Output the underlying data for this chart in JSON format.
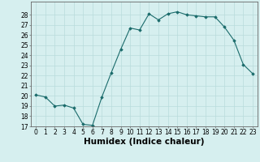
{
  "x": [
    0,
    1,
    2,
    3,
    4,
    5,
    6,
    7,
    8,
    9,
    10,
    11,
    12,
    13,
    14,
    15,
    16,
    17,
    18,
    19,
    20,
    21,
    22,
    23
  ],
  "y": [
    20.1,
    19.9,
    19.0,
    19.1,
    18.8,
    17.2,
    17.1,
    19.9,
    22.3,
    24.6,
    26.7,
    26.5,
    28.1,
    27.5,
    28.1,
    28.3,
    28.0,
    27.9,
    27.8,
    27.8,
    26.8,
    25.5,
    23.1,
    22.2
  ],
  "xlabel": "Humidex (Indice chaleur)",
  "ylim": [
    17,
    29
  ],
  "yticks": [
    17,
    18,
    19,
    20,
    21,
    22,
    23,
    24,
    25,
    26,
    27,
    28
  ],
  "xticks": [
    0,
    1,
    2,
    3,
    4,
    5,
    6,
    7,
    8,
    9,
    10,
    11,
    12,
    13,
    14,
    15,
    16,
    17,
    18,
    19,
    20,
    21,
    22,
    23
  ],
  "line_color": "#1a6b6b",
  "marker": "D",
  "marker_size": 1.8,
  "bg_color": "#d6efef",
  "grid_color": "#b8dcdc",
  "tick_label_fontsize": 5.5,
  "xlabel_fontsize": 7.5
}
